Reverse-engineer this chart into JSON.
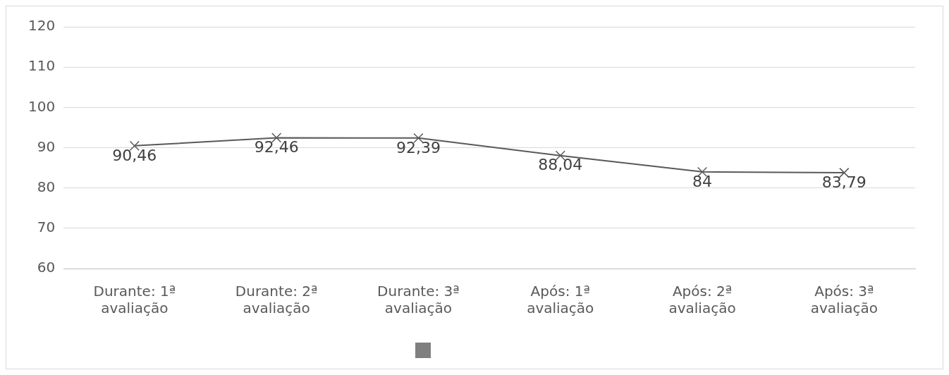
{
  "chart_data": {
    "type": "line",
    "categories": [
      "Durante: 1ª avaliação",
      "Durante: 2ª avaliação",
      "Durante: 3ª avaliação",
      "Após: 1ª avaliação",
      "Após: 2ª avaliação",
      "Após: 3ª avaliação"
    ],
    "series": [
      {
        "color": "#595959",
        "values": [
          90.46,
          92.46,
          92.39,
          88.04,
          84,
          83.79
        ]
      }
    ],
    "value_labels": [
      "90,46",
      "92,46",
      "92,39",
      "88,04",
      "84",
      "83,79"
    ],
    "ylim": [
      60,
      120
    ],
    "yticks": [
      60,
      70,
      80,
      90,
      100,
      110,
      120
    ],
    "grid": "y",
    "marker": "cross",
    "line_style": "solid"
  }
}
